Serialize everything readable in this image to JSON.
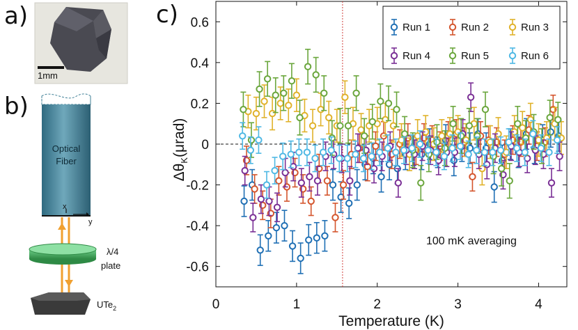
{
  "panels": {
    "a": "a)",
    "b": "b)",
    "c": "c)"
  },
  "photo": {
    "scale_label": "1mm"
  },
  "schematic": {
    "fiber_label_1": "Optical",
    "fiber_label_2": "Fiber",
    "x_axis_label": "x",
    "y_axis_label": "y",
    "plate_label_1": "λ/4",
    "plate_label_2": "plate",
    "sample_label_main": "UTe",
    "sample_label_sub": "2"
  },
  "colors": {
    "fiber": "#3f7f96",
    "plate": "#3fae5a",
    "beam": "#f0a030",
    "sample": "#3a3a3a",
    "tc_line": "#d0403c"
  },
  "chart_data": {
    "type": "scatter",
    "title": "",
    "xlabel": "Temperature (K)",
    "ylabel": "Δθ",
    "ylabel_sub": "K",
    "ylabel_unit": "(μrad)",
    "xlim": [
      0,
      4.35
    ],
    "ylim": [
      -0.7,
      0.7
    ],
    "xticks": [
      0,
      1,
      2,
      3,
      4
    ],
    "yticks": [
      0.6,
      0.4,
      0.2,
      0,
      -0.2,
      -0.4,
      -0.6
    ],
    "ytick_labels": [
      "0.6",
      "0.4",
      "0.2",
      "0",
      "-0.2",
      "-0.4",
      "-0.6"
    ],
    "reference_hline": 0,
    "reference_vline": 1.57,
    "annotation": "100 mK averaging",
    "legend_position": "top-right",
    "series": [
      {
        "name": "Run 1",
        "color": "#1f6fb4",
        "err": 0.075,
        "x": [
          0.35,
          0.45,
          0.55,
          0.65,
          0.75,
          0.85,
          0.95,
          1.05,
          1.15,
          1.25,
          1.35,
          1.45,
          1.55,
          1.65,
          1.75,
          1.85,
          1.95,
          2.05,
          2.15,
          2.25,
          2.35,
          2.45,
          2.55,
          2.65,
          2.75,
          2.85,
          2.95,
          3.05,
          3.15,
          3.25,
          3.35,
          3.45,
          3.55,
          3.65,
          3.75,
          3.85,
          3.95,
          4.05,
          4.15,
          4.25
        ],
        "y": [
          -0.28,
          -0.2,
          -0.52,
          -0.45,
          -0.41,
          -0.4,
          -0.5,
          -0.56,
          -0.47,
          -0.46,
          -0.45,
          -0.2,
          -0.26,
          -0.29,
          -0.2,
          -0.1,
          -0.07,
          -0.16,
          -0.1,
          -0.12,
          -0.05,
          -0.03,
          -0.05,
          0.0,
          -0.04,
          0.02,
          -0.08,
          -0.01,
          -0.02,
          0.05,
          -0.02,
          -0.21,
          -0.08,
          0.0,
          -0.04,
          0.05,
          -0.02,
          0.02,
          0.06,
          0.04
        ]
      },
      {
        "name": "Run 2",
        "color": "#d4552d",
        "err": 0.07,
        "x": [
          0.38,
          0.48,
          0.58,
          0.68,
          0.78,
          0.88,
          0.98,
          1.08,
          1.18,
          1.28,
          1.38,
          1.48,
          1.58,
          1.68,
          1.78,
          1.88,
          1.98,
          2.08,
          2.18,
          2.28,
          2.38,
          2.48,
          2.58,
          2.68,
          2.78,
          2.88,
          2.98,
          3.08,
          3.18,
          3.28,
          3.38,
          3.48,
          3.58,
          3.68,
          3.78,
          3.88,
          3.98,
          4.08,
          4.18
        ],
        "y": [
          -0.08,
          -0.22,
          -0.3,
          -0.34,
          -0.18,
          -0.21,
          -0.14,
          -0.22,
          -0.28,
          -0.12,
          -0.18,
          -0.36,
          -0.2,
          -0.05,
          -0.02,
          -0.11,
          -0.01,
          0.04,
          -0.05,
          0.0,
          0.03,
          -0.03,
          0.03,
          0.02,
          -0.01,
          0.04,
          0.05,
          0.01,
          -0.16,
          0.04,
          0.02,
          0.01,
          -0.05,
          0.02,
          0.01,
          0.07,
          -0.01,
          0.01,
          0.17
        ]
      },
      {
        "name": "Run 3",
        "color": "#e0b22a",
        "err": 0.08,
        "x": [
          0.4,
          0.5,
          0.6,
          0.7,
          0.8,
          0.9,
          1.0,
          1.1,
          1.2,
          1.3,
          1.4,
          1.5,
          1.6,
          1.7,
          1.8,
          1.9,
          2.0,
          2.1,
          2.2,
          2.3,
          2.4,
          2.5,
          2.6,
          2.7,
          2.8,
          2.9,
          3.0,
          3.1,
          3.2,
          3.3,
          3.4,
          3.5,
          3.6,
          3.7,
          3.8,
          3.9,
          4.0,
          4.1,
          4.2,
          4.28
        ],
        "y": [
          0.16,
          0.15,
          0.21,
          0.15,
          0.2,
          0.19,
          0.24,
          0.14,
          0.09,
          0.17,
          0.13,
          0.09,
          0.23,
          0.1,
          0.07,
          0.09,
          0.1,
          0.12,
          0.09,
          0.02,
          -0.05,
          0.04,
          0.06,
          0.0,
          0.04,
          0.05,
          0.06,
          0.02,
          0.1,
          -0.12,
          0.01,
          0.05,
          -0.04,
          0.06,
          0.08,
          0.12,
          0.02,
          0.03,
          0.1,
          0.03
        ]
      },
      {
        "name": "Run 4",
        "color": "#7a2f95",
        "err": 0.07,
        "x": [
          0.36,
          0.46,
          0.56,
          0.66,
          0.76,
          0.86,
          0.96,
          1.06,
          1.16,
          1.26,
          1.36,
          1.46,
          1.56,
          1.66,
          1.76,
          1.86,
          1.96,
          2.06,
          2.16,
          2.26,
          2.36,
          2.46,
          2.56,
          2.66,
          2.76,
          2.86,
          2.96,
          3.06,
          3.16,
          3.26,
          3.36,
          3.46,
          3.56,
          3.66,
          3.76,
          3.86,
          3.96,
          4.06,
          4.16,
          4.26
        ],
        "y": [
          -0.13,
          -0.36,
          -0.27,
          -0.28,
          -0.31,
          -0.14,
          -0.11,
          -0.19,
          -0.16,
          -0.18,
          -0.06,
          -0.05,
          -0.07,
          -0.18,
          -0.02,
          -0.03,
          -0.12,
          -0.06,
          -0.01,
          -0.19,
          -0.03,
          -0.05,
          -0.01,
          -0.03,
          -0.08,
          -0.04,
          -0.04,
          0.05,
          0.23,
          -0.05,
          -0.1,
          -0.02,
          -0.15,
          -0.01,
          -0.04,
          -0.07,
          -0.03,
          -0.05,
          -0.19,
          -0.06
        ]
      },
      {
        "name": "Run 5",
        "color": "#6aa63c",
        "err": 0.085,
        "x": [
          0.34,
          0.44,
          0.54,
          0.64,
          0.74,
          0.84,
          0.94,
          1.04,
          1.14,
          1.24,
          1.34,
          1.44,
          1.54,
          1.64,
          1.74,
          1.84,
          1.94,
          2.04,
          2.14,
          2.24,
          2.34,
          2.44,
          2.54,
          2.64,
          2.74,
          2.84,
          2.94,
          3.04,
          3.14,
          3.24,
          3.34,
          3.44,
          3.54,
          3.64,
          3.74,
          3.84,
          3.94,
          4.04,
          4.14,
          4.24
        ],
        "y": [
          0.17,
          0.02,
          0.27,
          0.32,
          0.24,
          0.25,
          0.31,
          0.13,
          0.38,
          0.34,
          0.25,
          0.03,
          0.09,
          0.09,
          0.25,
          0.04,
          0.11,
          0.21,
          0.2,
          0.17,
          0.05,
          -0.03,
          -0.19,
          -0.05,
          0.01,
          -0.02,
          0.1,
          0.04,
          0.09,
          0.04,
          0.17,
          -0.06,
          -0.12,
          -0.18,
          0.1,
          0.03,
          0.06,
          -0.01,
          0.13,
          0.12
        ]
      },
      {
        "name": "Run 6",
        "color": "#4eb8e4",
        "err": 0.065,
        "x": [
          0.33,
          0.43,
          0.53,
          0.63,
          0.73,
          0.83,
          0.93,
          1.03,
          1.13,
          1.23,
          1.33,
          1.43,
          1.53,
          1.63,
          1.73,
          1.83,
          1.93,
          2.03,
          2.13,
          2.23,
          2.33,
          2.43,
          2.53,
          2.63,
          2.73,
          2.83,
          2.93,
          3.03,
          3.13,
          3.23,
          3.33,
          3.43,
          3.53,
          3.63,
          3.73,
          3.83,
          3.93,
          4.03,
          4.13,
          4.23
        ],
        "y": [
          0.04,
          -0.03,
          0.02,
          -0.2,
          -0.13,
          -0.06,
          -0.05,
          -0.04,
          -0.04,
          -0.07,
          -0.04,
          -0.03,
          -0.07,
          -0.07,
          -0.05,
          -0.07,
          -0.06,
          -0.04,
          -0.02,
          -0.04,
          -0.03,
          -0.02,
          0.0,
          -0.03,
          -0.04,
          -0.06,
          -0.02,
          -0.01,
          -0.05,
          -0.03,
          -0.04,
          -0.04,
          -0.03,
          0.01,
          -0.02,
          -0.04,
          0.05,
          -0.02,
          -0.04,
          0.02
        ]
      }
    ]
  }
}
